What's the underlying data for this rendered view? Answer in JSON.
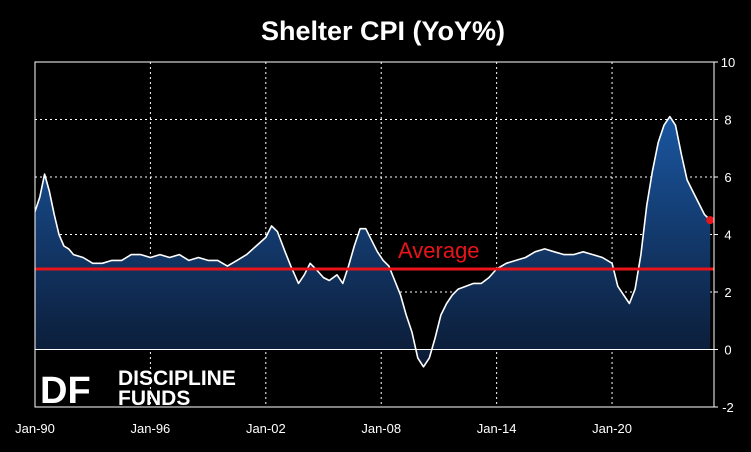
{
  "chart_data": {
    "type": "area",
    "title": "Shelter CPI (YoY%)",
    "xlabel": "",
    "ylabel": "",
    "ylim": [
      -2,
      10
    ],
    "yticks": [
      -2,
      0,
      2,
      4,
      6,
      8,
      10
    ],
    "xlim": [
      1990.0,
      2025.3
    ],
    "xticks": [
      {
        "label": "Jan-90",
        "x": 1990
      },
      {
        "label": "Jan-96",
        "x": 1996
      },
      {
        "label": "Jan-02",
        "x": 2002
      },
      {
        "label": "Jan-08",
        "x": 2008
      },
      {
        "label": "Jan-14",
        "x": 2014
      },
      {
        "label": "Jan-20",
        "x": 2020
      }
    ],
    "grid": true,
    "series": [
      {
        "name": "",
        "color": "#ffffff",
        "fill_top": "#1a56a0",
        "fill_bottom": "#0b1a33",
        "x": [
          1990.0,
          1990.25,
          1990.5,
          1990.75,
          1991.0,
          1991.25,
          1991.5,
          1991.75,
          1992.0,
          1992.5,
          1993.0,
          1993.5,
          1994.0,
          1994.5,
          1995.0,
          1995.5,
          1996.0,
          1996.5,
          1997.0,
          1997.5,
          1998.0,
          1998.5,
          1999.0,
          1999.5,
          2000.0,
          2000.5,
          2001.0,
          2001.5,
          2002.0,
          2002.3,
          2002.6,
          2003.0,
          2003.3,
          2003.7,
          2004.0,
          2004.3,
          2004.6,
          2005.0,
          2005.3,
          2005.7,
          2006.0,
          2006.3,
          2006.6,
          2006.9,
          2007.2,
          2007.5,
          2007.8,
          2008.1,
          2008.4,
          2008.7,
          2009.0,
          2009.3,
          2009.6,
          2009.9,
          2010.2,
          2010.5,
          2010.8,
          2011.1,
          2011.4,
          2011.7,
          2012.0,
          2012.4,
          2012.8,
          2013.2,
          2013.6,
          2014.0,
          2014.5,
          2015.0,
          2015.5,
          2016.0,
          2016.5,
          2017.0,
          2017.5,
          2018.0,
          2018.5,
          2019.0,
          2019.5,
          2020.0,
          2020.3,
          2020.6,
          2020.9,
          2021.2,
          2021.5,
          2021.8,
          2022.1,
          2022.4,
          2022.7,
          2023.0,
          2023.3,
          2023.6,
          2023.9,
          2024.2,
          2024.5,
          2024.8,
          2025.1
        ],
        "y": [
          4.8,
          5.3,
          6.1,
          5.5,
          4.7,
          4.0,
          3.6,
          3.5,
          3.3,
          3.2,
          3.0,
          3.0,
          3.1,
          3.1,
          3.3,
          3.3,
          3.2,
          3.3,
          3.2,
          3.3,
          3.1,
          3.2,
          3.1,
          3.1,
          2.9,
          3.1,
          3.3,
          3.6,
          3.9,
          4.3,
          4.1,
          3.4,
          2.9,
          2.3,
          2.6,
          3.0,
          2.8,
          2.5,
          2.4,
          2.6,
          2.3,
          2.9,
          3.6,
          4.2,
          4.2,
          3.8,
          3.4,
          3.1,
          2.9,
          2.4,
          1.9,
          1.2,
          0.6,
          -0.3,
          -0.6,
          -0.3,
          0.4,
          1.2,
          1.6,
          1.9,
          2.1,
          2.2,
          2.3,
          2.3,
          2.5,
          2.8,
          3.0,
          3.1,
          3.2,
          3.4,
          3.5,
          3.4,
          3.3,
          3.3,
          3.4,
          3.3,
          3.2,
          3.0,
          2.2,
          1.9,
          1.6,
          2.1,
          3.3,
          5.0,
          6.2,
          7.2,
          7.8,
          8.1,
          7.8,
          6.8,
          5.9,
          5.5,
          5.1,
          4.7,
          4.5
        ]
      }
    ],
    "reference_lines": [
      {
        "label": "Average",
        "y": 2.8,
        "color": "#e8141a"
      }
    ],
    "end_marker": {
      "x": 2025.1,
      "y": 4.5,
      "color": "#e8141a"
    }
  },
  "branding": {
    "logo_mark": "DF",
    "line1": "DISCIPLINE",
    "line2": "FUNDS"
  }
}
